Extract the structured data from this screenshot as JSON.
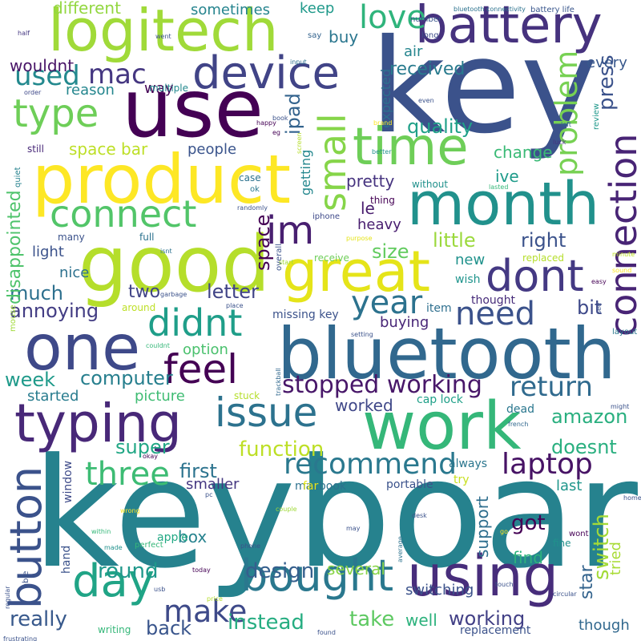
{
  "words": [
    {
      "text": "keyboard",
      "color": "#26828e"
    },
    {
      "text": "key",
      "color": "#3b528b"
    },
    {
      "text": "use",
      "color": "#440154"
    },
    {
      "text": "bluetooth",
      "color": "#31688e"
    },
    {
      "text": "work",
      "color": "#35b779"
    },
    {
      "text": "good",
      "color": "#b5de2b"
    },
    {
      "text": "product",
      "color": "#fde725"
    },
    {
      "text": "logitech",
      "color": "#a0da39"
    },
    {
      "text": "month",
      "color": "#21918c"
    },
    {
      "text": "one",
      "color": "#3e4989"
    },
    {
      "text": "typing",
      "color": "#482878"
    },
    {
      "text": "using",
      "color": "#472d7b"
    },
    {
      "text": "battery",
      "color": "#46327e"
    },
    {
      "text": "time",
      "color": "#6ece58"
    },
    {
      "text": "great",
      "color": "#e5e419"
    },
    {
      "text": "device",
      "color": "#414487"
    },
    {
      "text": "connection",
      "color": "#482475"
    },
    {
      "text": "bought",
      "color": "#2a788e"
    },
    {
      "text": "issue",
      "color": "#2c728e"
    },
    {
      "text": "connect",
      "color": "#52c569"
    },
    {
      "text": "button",
      "color": "#3b528b"
    },
    {
      "text": "day",
      "color": "#20a486"
    },
    {
      "text": "feel",
      "color": "#440154"
    },
    {
      "text": "dont",
      "color": "#443983"
    },
    {
      "text": "im",
      "color": "#481f70"
    },
    {
      "text": "didnt",
      "color": "#1f9e89"
    },
    {
      "text": "small",
      "color": "#86d549"
    },
    {
      "text": "type",
      "color": "#6ece58"
    },
    {
      "text": "love",
      "color": "#2fb47c"
    },
    {
      "text": "three",
      "color": "#3dbc74"
    },
    {
      "text": "need",
      "color": "#3b528b"
    },
    {
      "text": "year",
      "color": "#2c728e"
    },
    {
      "text": "laptop",
      "color": "#471365"
    },
    {
      "text": "make",
      "color": "#3e4a89"
    },
    {
      "text": "recommend",
      "color": "#2a788e"
    },
    {
      "text": "problem",
      "color": "#77d153"
    },
    {
      "text": "return",
      "color": "#306a8e"
    },
    {
      "text": "used",
      "color": "#23898e"
    },
    {
      "text": "mac",
      "color": "#453781"
    },
    {
      "text": "stopped working",
      "color": "#481769"
    },
    {
      "text": "really",
      "color": "#38598c"
    },
    {
      "text": "function",
      "color": "#bddf26"
    },
    {
      "text": "design",
      "color": "#355f8d"
    },
    {
      "text": "switch",
      "color": "#a2da37"
    },
    {
      "text": "amazon",
      "color": "#29af7f"
    },
    {
      "text": "round",
      "color": "#1f988b"
    },
    {
      "text": "instead",
      "color": "#26ad81"
    },
    {
      "text": "take",
      "color": "#5ec962"
    },
    {
      "text": "working",
      "color": "#424086"
    },
    {
      "text": "press",
      "color": "#3b528b"
    },
    {
      "text": "letter",
      "color": "#414487"
    },
    {
      "text": "annoying",
      "color": "#433d84"
    },
    {
      "text": "quality",
      "color": "#1fa088"
    },
    {
      "text": "computer",
      "color": "#277f8e"
    },
    {
      "text": "super",
      "color": "#22a785"
    },
    {
      "text": "ipad",
      "color": "#33638d"
    },
    {
      "text": "little",
      "color": "#9bd93c"
    },
    {
      "text": "right",
      "color": "#3b528b"
    },
    {
      "text": "space",
      "color": "#440154"
    },
    {
      "text": "different",
      "color": "#93d741"
    },
    {
      "text": "space bar",
      "color": "#bddf26"
    },
    {
      "text": "much",
      "color": "#2d708e"
    },
    {
      "text": "disappointed",
      "color": "#4ec36b"
    },
    {
      "text": "first",
      "color": "#2c738e"
    },
    {
      "text": "doesnt",
      "color": "#29af7f"
    },
    {
      "text": "got",
      "color": "#440154"
    },
    {
      "text": "bit",
      "color": "#3e4989"
    },
    {
      "text": "change",
      "color": "#3aba76"
    },
    {
      "text": "week",
      "color": "#1f9a8a"
    },
    {
      "text": "buy",
      "color": "#2a768e"
    },
    {
      "text": "received",
      "color": "#297b8e"
    },
    {
      "text": "size",
      "color": "#62cb5f"
    },
    {
      "text": "ive",
      "color": "#1e9b8a"
    },
    {
      "text": "pretty",
      "color": "#46337f"
    },
    {
      "text": "heavy",
      "color": "#481d6f"
    },
    {
      "text": "back",
      "color": "#39558c"
    },
    {
      "text": "find",
      "color": "#2db27d"
    },
    {
      "text": "people",
      "color": "#3a548c"
    },
    {
      "text": "support",
      "color": "#2e6e8e"
    },
    {
      "text": "le",
      "color": "#481c6e"
    },
    {
      "text": "two",
      "color": "#414487"
    },
    {
      "text": "several",
      "color": "#89d548"
    },
    {
      "text": "tried",
      "color": "#a8db34"
    },
    {
      "text": "star",
      "color": "#33638d"
    },
    {
      "text": "picture",
      "color": "#3fbc73"
    },
    {
      "text": "started",
      "color": "#287c8e"
    },
    {
      "text": "worked",
      "color": "#3f4788"
    },
    {
      "text": "well",
      "color": "#2db27d"
    },
    {
      "text": "box",
      "color": "#26828e"
    },
    {
      "text": "smaller",
      "color": "#453781"
    },
    {
      "text": "last",
      "color": "#1f968b"
    },
    {
      "text": "option",
      "color": "#4ac16d"
    },
    {
      "text": "new",
      "color": "#20928c"
    },
    {
      "text": "light",
      "color": "#3b528b"
    },
    {
      "text": "nice",
      "color": "#2d718e"
    },
    {
      "text": "buying",
      "color": "#482677"
    },
    {
      "text": "wouldnt",
      "color": "#481467"
    },
    {
      "text": "reason",
      "color": "#24868e"
    },
    {
      "text": "way",
      "color": "#440154"
    },
    {
      "text": "sometimes",
      "color": "#25848e"
    },
    {
      "text": "keep",
      "color": "#1f998a"
    },
    {
      "text": "air",
      "color": "#25858e"
    },
    {
      "text": "every",
      "color": "#38588c"
    },
    {
      "text": "expected",
      "color": "#2d708e"
    },
    {
      "text": "getting",
      "color": "#24878e"
    },
    {
      "text": "though",
      "color": "#31688e"
    },
    {
      "text": "switching",
      "color": "#3b528b"
    },
    {
      "text": "missing key",
      "color": "#3b528b"
    },
    {
      "text": "thought",
      "color": "#472c7a"
    },
    {
      "text": "wish",
      "color": "#1f948c"
    },
    {
      "text": "item",
      "color": "#2e6f8e"
    },
    {
      "text": "cap lock",
      "color": "#1fa088"
    },
    {
      "text": "dead",
      "color": "#2a778e"
    },
    {
      "text": "macbook",
      "color": "#2d718e"
    },
    {
      "text": "portable",
      "color": "#3b528b"
    },
    {
      "text": "window",
      "color": "#3e4a89"
    },
    {
      "text": "apple",
      "color": "#22a884"
    },
    {
      "text": "hand",
      "color": "#3b528b"
    },
    {
      "text": "always",
      "color": "#2a768e"
    },
    {
      "text": "try",
      "color": "#c8e020"
    },
    {
      "text": "far",
      "color": "#e4e419"
    },
    {
      "text": "replacement",
      "color": "#3b528b"
    },
    {
      "text": "quiet",
      "color": "#26828e"
    },
    {
      "text": "battery life",
      "color": "#39568c"
    },
    {
      "text": "bluetooth connectivity",
      "color": "#2c728e"
    },
    {
      "text": "number",
      "color": "#39558c"
    },
    {
      "text": "say",
      "color": "#33638d"
    },
    {
      "text": "long",
      "color": "#3e4c8a"
    },
    {
      "text": "half",
      "color": "#453882"
    },
    {
      "text": "went",
      "color": "#3b528b"
    },
    {
      "text": "input",
      "color": "#2d718e"
    },
    {
      "text": "order",
      "color": "#3f4889"
    },
    {
      "text": "multiple",
      "color": "#23898e"
    },
    {
      "text": "still",
      "color": "#482878"
    },
    {
      "text": "happy",
      "color": "#440154"
    },
    {
      "text": "book",
      "color": "#3b528b"
    },
    {
      "text": "eg",
      "color": "#440154"
    },
    {
      "text": "better",
      "color": "#21918c"
    },
    {
      "text": "brand",
      "color": "#fde725"
    },
    {
      "text": "even",
      "color": "#3b528b"
    },
    {
      "text": "left",
      "color": "#31688e"
    },
    {
      "text": "review",
      "color": "#1f988b"
    },
    {
      "text": "luck",
      "color": "#46327e"
    },
    {
      "text": "case",
      "color": "#2c728e"
    },
    {
      "text": "ok",
      "color": "#2a788e"
    },
    {
      "text": "screen",
      "color": "#b5de2b"
    },
    {
      "text": "lasted",
      "color": "#35b779"
    },
    {
      "text": "without",
      "color": "#21918c"
    },
    {
      "text": "thing",
      "color": "#440154"
    },
    {
      "text": "randomly",
      "color": "#3b528b"
    },
    {
      "text": "iphone",
      "color": "#3e4989"
    },
    {
      "text": "overall",
      "color": "#3b528b"
    },
    {
      "text": "full",
      "color": "#2c728e"
    },
    {
      "text": "many",
      "color": "#3b528b"
    },
    {
      "text": "isnt",
      "color": "#2c728e"
    },
    {
      "text": "purpose",
      "color": "#e5e419"
    },
    {
      "text": "start",
      "color": "#a0da39"
    },
    {
      "text": "receive",
      "color": "#6ece58"
    },
    {
      "text": "replaced",
      "color": "#b5de2b"
    },
    {
      "text": "minute",
      "color": "#bddf26"
    },
    {
      "text": "sound",
      "color": "#fde725"
    },
    {
      "text": "easy",
      "color": "#440154"
    },
    {
      "text": "around",
      "color": "#bddf26"
    },
    {
      "text": "garbage",
      "color": "#3b528b"
    },
    {
      "text": "place",
      "color": "#3b528b"
    },
    {
      "text": "setting",
      "color": "#3b528b"
    },
    {
      "text": "see",
      "color": "#3b528b"
    },
    {
      "text": "layout",
      "color": "#2a788e"
    },
    {
      "text": "mouse",
      "color": "#a0da39"
    },
    {
      "text": "couldnt",
      "color": "#35b779"
    },
    {
      "text": "trackball",
      "color": "#31688e"
    },
    {
      "text": "stuck",
      "color": "#b5de2b"
    },
    {
      "text": "might",
      "color": "#3b528b"
    },
    {
      "text": "french",
      "color": "#31688e"
    },
    {
      "text": "okay",
      "color": "#440154"
    },
    {
      "text": "wrong",
      "color": "#fde725"
    },
    {
      "text": "pc",
      "color": "#3b528b"
    },
    {
      "text": "couple",
      "color": "#a0da39"
    },
    {
      "text": "desk",
      "color": "#3b528b"
    },
    {
      "text": "home",
      "color": "#3b528b"
    },
    {
      "text": "within",
      "color": "#35b779"
    },
    {
      "text": "made",
      "color": "#21918c"
    },
    {
      "text": "perfect",
      "color": "#35b779"
    },
    {
      "text": "phone",
      "color": "#3b528b"
    },
    {
      "text": "may",
      "color": "#3b528b"
    },
    {
      "text": "average",
      "color": "#2c728e"
    },
    {
      "text": "go",
      "color": "#fde725"
    },
    {
      "text": "fine",
      "color": "#21918c"
    },
    {
      "text": "wont",
      "color": "#440154"
    },
    {
      "text": "today",
      "color": "#440154"
    },
    {
      "text": "able",
      "color": "#3b528b"
    },
    {
      "text": "regular",
      "color": "#3b528b"
    },
    {
      "text": "usb",
      "color": "#3b528b"
    },
    {
      "text": "price",
      "color": "#b5de2b"
    },
    {
      "text": "circular",
      "color": "#3b528b"
    },
    {
      "text": "touch",
      "color": "#3b528b"
    },
    {
      "text": "writing",
      "color": "#35b779"
    },
    {
      "text": "frustrating",
      "color": "#3b528b"
    },
    {
      "text": "found",
      "color": "#3b528b"
    }
  ]
}
